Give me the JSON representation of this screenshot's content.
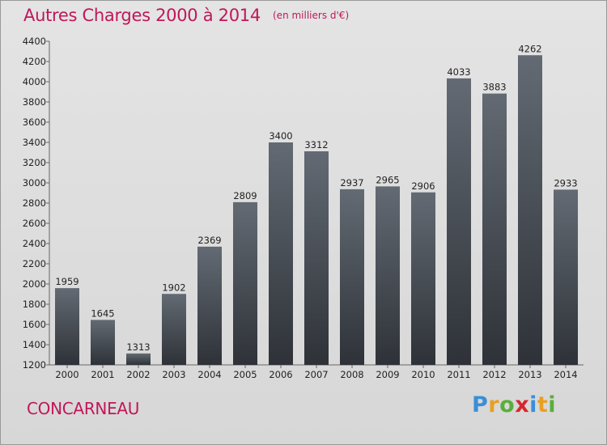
{
  "title": "Autres Charges 2000 à 2014",
  "subtitle": "(en milliers d'€)",
  "location": "CONCARNEAU",
  "brand": {
    "letters": [
      "P",
      "r",
      "o",
      "x",
      "i",
      "t",
      "i"
    ],
    "colors": [
      "#3a8fd6",
      "#e8a023",
      "#5aae3a",
      "#d8262e",
      "#3a8fd6",
      "#e8a023",
      "#5aae3a"
    ]
  },
  "colors": {
    "accent": "#c0175a",
    "bar_top": "#636a73",
    "bar_bottom": "#2e3238"
  },
  "chart_data": {
    "type": "bar",
    "categories": [
      "2000",
      "2001",
      "2002",
      "2003",
      "2004",
      "2005",
      "2006",
      "2007",
      "2008",
      "2009",
      "2010",
      "2011",
      "2012",
      "2013",
      "2014"
    ],
    "values": [
      1959,
      1645,
      1313,
      1902,
      2369,
      2809,
      3400,
      3312,
      2937,
      2965,
      2906,
      4033,
      3883,
      4262,
      2933
    ],
    "ylim": [
      1200,
      4400
    ],
    "yticks": [
      1200,
      1400,
      1600,
      1800,
      2000,
      2200,
      2400,
      2600,
      2800,
      3000,
      3200,
      3400,
      3600,
      3800,
      4000,
      4200,
      4400
    ],
    "grid": false,
    "data_labels": true
  }
}
